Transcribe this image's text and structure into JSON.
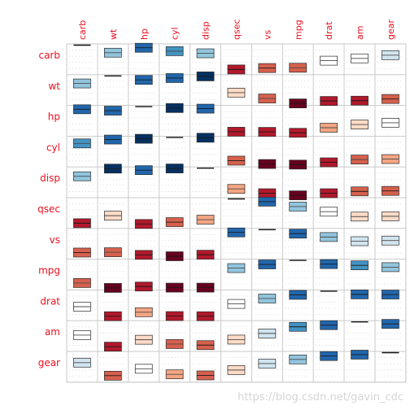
{
  "chart_data": {
    "type": "heatmap",
    "variables": [
      "carb",
      "wt",
      "hp",
      "cyl",
      "disp",
      "qsec",
      "vs",
      "mpg",
      "drat",
      "am",
      "gear"
    ],
    "values": [
      [
        1.0,
        0.43,
        0.75,
        0.53,
        0.39,
        -0.66,
        -0.57,
        -0.55,
        -0.09,
        0.06,
        0.27
      ],
      [
        0.43,
        1.0,
        0.66,
        0.78,
        0.89,
        -0.17,
        -0.55,
        -0.87,
        -0.71,
        -0.69,
        -0.58
      ],
      [
        0.75,
        0.66,
        1.0,
        0.83,
        0.79,
        -0.71,
        -0.72,
        -0.78,
        -0.45,
        -0.24,
        -0.13
      ],
      [
        0.53,
        0.78,
        0.83,
        1.0,
        0.9,
        -0.59,
        -0.81,
        -0.85,
        -0.7,
        -0.52,
        -0.49
      ],
      [
        0.39,
        0.89,
        0.79,
        0.9,
        1.0,
        -0.43,
        -0.71,
        -0.85,
        -0.71,
        -0.59,
        -0.56
      ],
      [
        -0.66,
        -0.17,
        -0.71,
        -0.59,
        -0.43,
        1.0,
        0.74,
        0.42,
        0.09,
        -0.23,
        -0.21
      ],
      [
        -0.57,
        -0.55,
        -0.72,
        -0.81,
        -0.71,
        0.74,
        1.0,
        0.66,
        0.44,
        0.17,
        0.21
      ],
      [
        -0.55,
        -0.87,
        -0.78,
        -0.85,
        -0.85,
        0.42,
        0.66,
        1.0,
        0.68,
        0.6,
        0.48
      ],
      [
        -0.09,
        -0.71,
        -0.45,
        -0.7,
        -0.71,
        0.09,
        0.44,
        0.68,
        1.0,
        0.71,
        0.7
      ],
      [
        0.06,
        -0.69,
        -0.24,
        -0.52,
        -0.59,
        -0.23,
        0.17,
        0.6,
        0.71,
        1.0,
        0.79
      ],
      [
        0.27,
        -0.58,
        -0.13,
        -0.49,
        -0.56,
        -0.21,
        0.21,
        0.48,
        0.7,
        0.79,
        1.0
      ]
    ],
    "value_range": [
      -1,
      1
    ],
    "color_scale": {
      "negative": [
        "#f4a582",
        "#d6604d",
        "#b2182b",
        "#67001f"
      ],
      "near_zero": "#ffffff",
      "positive": [
        "#92c5de",
        "#4393c3",
        "#2166ac",
        "#053061"
      ],
      "light_negative": "#fddbc7",
      "light_positive": "#d1e5f0"
    },
    "grid": true
  },
  "watermark": "https://blog.csdn.net/gavin_cdc"
}
